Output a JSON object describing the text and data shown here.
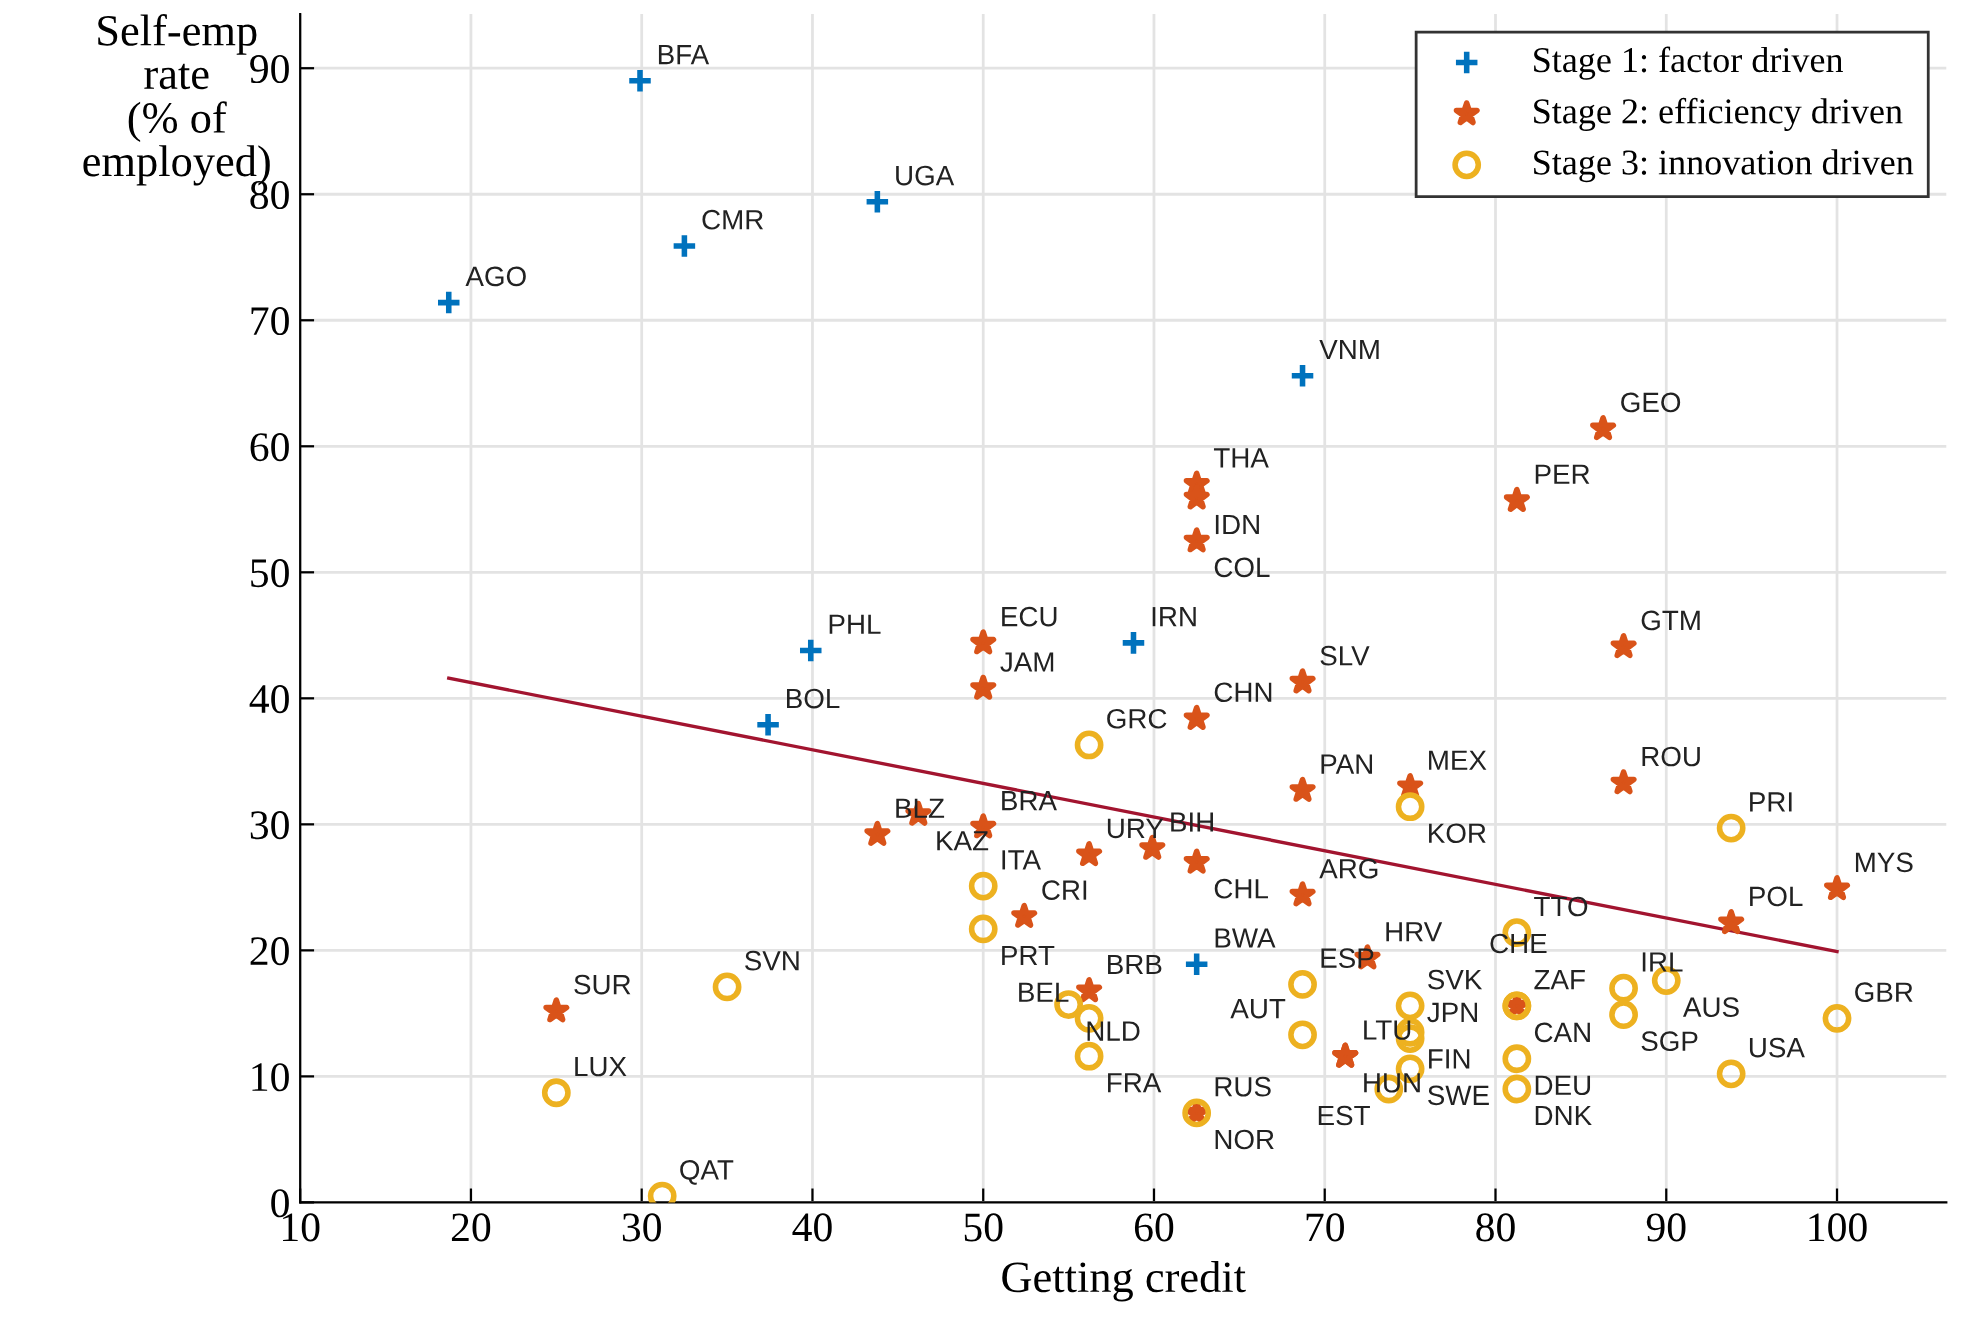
{
  "chart_data": {
    "type": "scatter",
    "xlabel": "Getting credit",
    "ylabel": "Self-emp\nrate\n(% of\nemployed)",
    "xlim": [
      10,
      106.4
    ],
    "ylim": [
      0,
      94.3
    ],
    "xticks": [
      10,
      20,
      30,
      40,
      50,
      60,
      70,
      80,
      90,
      100
    ],
    "yticks": [
      0,
      10,
      20,
      30,
      40,
      50,
      60,
      70,
      80,
      90
    ],
    "grid": true,
    "legend": "top right",
    "series": [
      {
        "name": "Stage 1: factor driven",
        "color": "#0072bd",
        "marker": "cross",
        "x": [
          18.7,
          29.9,
          32.5,
          43.8,
          68.7,
          39.9,
          37.4,
          58.8,
          62.5
        ],
        "values": [
          71.4,
          89.0,
          75.9,
          79.4,
          65.6,
          43.8,
          37.9,
          44.4,
          18.9
        ],
        "value_labels": [
          "AGO",
          "BFA",
          "CMR",
          "UGA",
          "VNM",
          "PHL",
          "BOL",
          "IRN",
          "BWA"
        ]
      },
      {
        "name": "Stage 2: efficiency driven",
        "color": "#d95319",
        "marker": "star",
        "x": [
          50,
          50,
          62.5,
          62.5,
          62.5,
          62.5,
          68.7,
          81.25,
          86.3,
          87.5,
          68.7,
          75,
          87.5,
          100,
          93.8,
          43.8,
          46.2,
          50,
          56.2,
          59.9,
          62.5,
          68.7,
          52.4,
          72.5,
          56.2,
          25,
          71.2,
          71.2,
          81.25,
          62.5
        ],
        "values": [
          44.4,
          40.8,
          57.0,
          55.9,
          52.5,
          38.4,
          41.3,
          55.7,
          61.4,
          44.1,
          32.7,
          33.0,
          33.3,
          24.9,
          22.2,
          29.2,
          30.8,
          29.8,
          27.6,
          28.1,
          27.0,
          24.4,
          22.7,
          19.4,
          16.8,
          15.2,
          11.6,
          11.6,
          15.6,
          7.1
        ],
        "value_labels": [
          "ECU",
          "JAM",
          "THA",
          "IDN",
          "COL",
          "CHN",
          "SLV",
          "PER",
          "GEO",
          "GTM",
          "PAN",
          "MEX",
          "ROU",
          "MYS",
          "POL",
          "BLZ",
          "KAZ",
          "BRA",
          "URY",
          "BIH",
          "CHL",
          "ARG",
          "CRI",
          "HRV",
          "BRB",
          "SUR",
          "LTU",
          "HUN",
          "ZAF",
          "RUS"
        ]
      },
      {
        "name": "Stage 3: innovation driven",
        "color": "#edb120",
        "marker": "circle",
        "x": [
          56.2,
          75,
          93.8,
          50,
          50,
          81.25,
          35,
          25,
          31.2,
          55,
          56.2,
          56.2,
          68.7,
          68.7,
          75,
          75,
          75,
          75,
          73.75,
          81.25,
          81.25,
          81.25,
          81.25,
          87.5,
          90,
          87.5,
          100,
          93.8,
          62.5
        ],
        "values": [
          36.3,
          31.4,
          29.7,
          25.1,
          21.7,
          21.4,
          17.1,
          8.7,
          0.5,
          15.7,
          14.6,
          11.6,
          17.3,
          13.3,
          15.6,
          13.5,
          13.0,
          10.6,
          9.0,
          15.6,
          15.6,
          11.4,
          9.0,
          17.0,
          17.6,
          14.9,
          14.6,
          10.2,
          7.1
        ],
        "value_labels": [
          "GRC",
          "KOR",
          "PRI",
          "ITA",
          "PRT",
          "TTO",
          "SVN",
          "LUX",
          "QAT",
          "NLD",
          "BEL",
          "FRA",
          "ESP",
          "AUT",
          "SVK",
          "FIN",
          "JPN",
          "SWE",
          "EST",
          "CAN",
          "CHE",
          "DEU",
          "DNK",
          "IRL",
          "AUS",
          "SGP",
          "GBR",
          "USA",
          "NOR"
        ]
      },
      {
        "type": "line",
        "color": "#a2142f",
        "x": [
          18.7,
          100
        ],
        "values": [
          41.6,
          19.9
        ]
      }
    ]
  }
}
